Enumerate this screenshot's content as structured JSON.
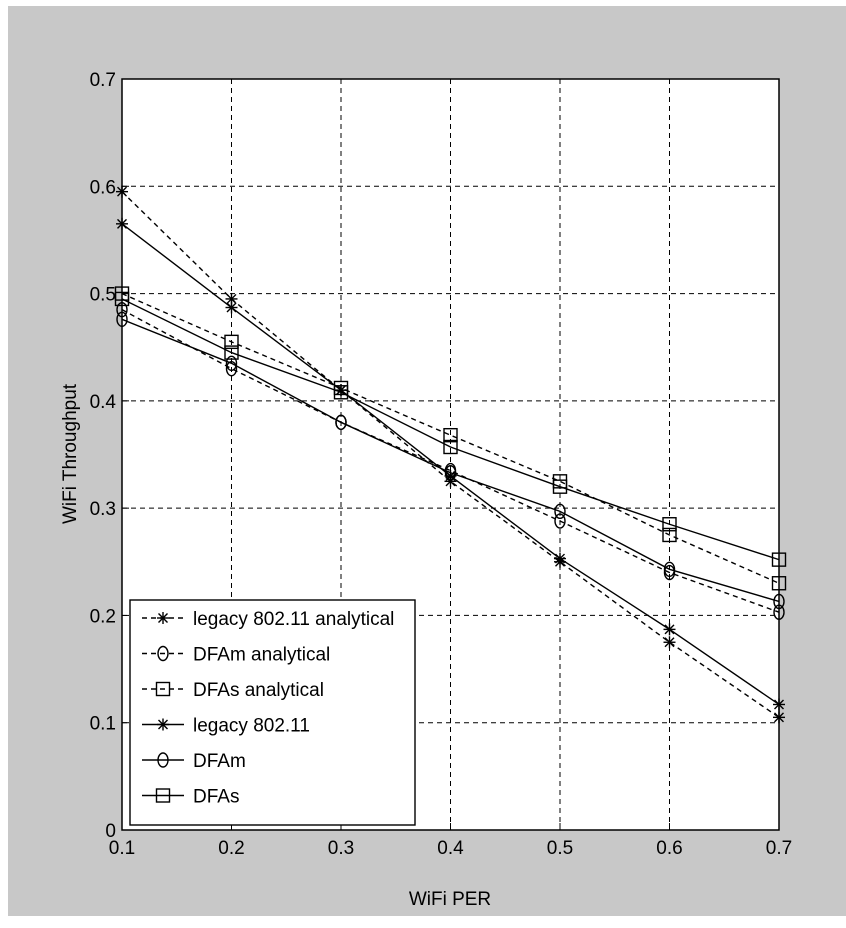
{
  "chart_data": {
    "type": "line",
    "title": "",
    "xlabel": "WiFi PER",
    "ylabel": "WiFi Throughput",
    "xlim": [
      0.1,
      0.7
    ],
    "ylim": [
      0,
      0.7
    ],
    "xticks": [
      "0.1",
      "0.2",
      "0.3",
      "0.4",
      "0.5",
      "0.6",
      "0.7"
    ],
    "yticks": [
      "0",
      "0.1",
      "0.2",
      "0.3",
      "0.4",
      "0.5",
      "0.6",
      "0.7"
    ],
    "grid": true,
    "legend_position": "bottom-left",
    "x": [
      0.1,
      0.2,
      0.3,
      0.4,
      0.5,
      0.6,
      0.7
    ],
    "series": [
      {
        "name": "legacy 802.11 analytical",
        "line_style": "dashed",
        "marker": "asterisk",
        "color": "#000000",
        "values": [
          0.595,
          0.495,
          0.41,
          0.325,
          0.25,
          0.175,
          0.105
        ]
      },
      {
        "name": "DFAm analytical",
        "line_style": "dashed",
        "marker": "circle",
        "color": "#000000",
        "values": [
          0.485,
          0.43,
          0.38,
          0.335,
          0.288,
          0.24,
          0.203
        ]
      },
      {
        "name": "DFAs analytical",
        "line_style": "dashed",
        "marker": "square",
        "color": "#000000",
        "values": [
          0.5,
          0.455,
          0.412,
          0.368,
          0.325,
          0.275,
          0.23
        ]
      },
      {
        "name": "legacy 802.11",
        "line_style": "solid",
        "marker": "asterisk",
        "color": "#000000",
        "values": [
          0.565,
          0.487,
          0.41,
          0.33,
          0.253,
          0.187,
          0.117
        ]
      },
      {
        "name": "DFAm",
        "line_style": "solid",
        "marker": "circle",
        "color": "#000000",
        "values": [
          0.476,
          0.435,
          0.38,
          0.333,
          0.297,
          0.243,
          0.213
        ]
      },
      {
        "name": "DFAs",
        "line_style": "solid",
        "marker": "square",
        "color": "#000000",
        "values": [
          0.495,
          0.445,
          0.408,
          0.357,
          0.32,
          0.285,
          0.252
        ]
      }
    ]
  }
}
